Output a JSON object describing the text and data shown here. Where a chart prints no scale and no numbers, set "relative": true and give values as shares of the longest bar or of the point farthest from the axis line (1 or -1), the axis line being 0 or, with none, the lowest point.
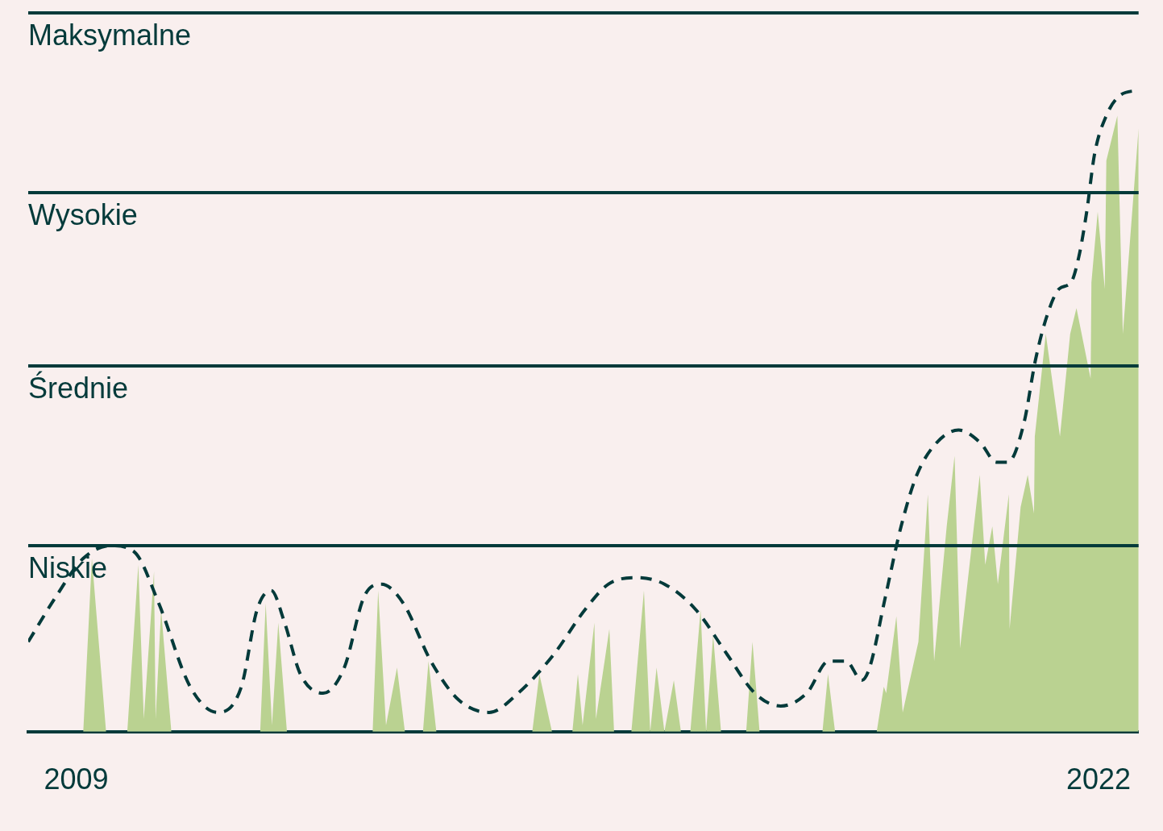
{
  "chart_data": {
    "type": "area",
    "relative": true,
    "xlim": [
      2008.39,
      2022.51
    ],
    "xticks": [
      2009,
      2022
    ],
    "tick_labels": "x",
    "grid": false,
    "legend": false,
    "marker": "none",
    "series": [
      {
        "type": "area",
        "color": "#bad291",
        "x": [
          2008.39,
          2009.09,
          2009.2,
          2009.38,
          2009.65,
          2009.79,
          2009.86,
          2009.99,
          2010.01,
          2010.08,
          2010.21,
          2011.34,
          2011.41,
          2011.49,
          2011.57,
          2011.68,
          2012.77,
          2012.84,
          2012.94,
          2013.08,
          2013.18,
          2013.41,
          2013.48,
          2013.58,
          2014.8,
          2014.89,
          2015.05,
          2015.31,
          2015.38,
          2015.44,
          2015.59,
          2015.61,
          2015.78,
          2015.84,
          2016.06,
          2016.22,
          2016.3,
          2016.38,
          2016.48,
          2016.6,
          2016.69,
          2016.81,
          2016.94,
          2017.01,
          2017.1,
          2017.2,
          2017.52,
          2017.6,
          2017.69,
          2018.49,
          2018.56,
          2018.65,
          2019.18,
          2019.27,
          2019.3,
          2019.43,
          2019.51,
          2019.71,
          2019.83,
          2019.91,
          2020.07,
          2020.17,
          2020.24,
          2020.49,
          2020.56,
          2020.65,
          2020.72,
          2020.86,
          2020.87,
          2021.01,
          2021.1,
          2021.18,
          2021.19,
          2021.33,
          2021.51,
          2021.64,
          2021.72,
          2021.9,
          2021.91,
          2021.99,
          2022.08,
          2022.1,
          2022.24,
          2022.31,
          2022.51
        ],
        "values": [
          0,
          0,
          0.27,
          0,
          0,
          0.26,
          0.02,
          0.25,
          0.02,
          0.19,
          0,
          0,
          0.2,
          0.01,
          0.17,
          0,
          0,
          0.22,
          0.01,
          0.1,
          0,
          0,
          0.11,
          0,
          0,
          0.09,
          0,
          0,
          0.09,
          0.01,
          0.17,
          0.02,
          0.16,
          0,
          0,
          0.22,
          0,
          0.1,
          0,
          0.08,
          0,
          0,
          0.19,
          0,
          0.15,
          0,
          0,
          0.14,
          0,
          0,
          0.09,
          0,
          0,
          0.07,
          0.06,
          0.18,
          0.03,
          0.14,
          0.37,
          0.11,
          0.32,
          0.43,
          0.13,
          0.4,
          0.26,
          0.32,
          0.23,
          0.37,
          0.16,
          0.35,
          0.4,
          0.34,
          0.46,
          0.62,
          0.46,
          0.62,
          0.66,
          0.55,
          0.7,
          0.81,
          0.69,
          0.89,
          0.96,
          0.62,
          0.94
        ]
      },
      {
        "type": "line",
        "color": "#033a3a",
        "line_style": "dashed",
        "x": [
          2008.39,
          2008.74,
          2009.09,
          2009.44,
          2009.74,
          2010.05,
          2010.45,
          2010.8,
          2011.1,
          2011.3,
          2011.48,
          2011.65,
          2011.85,
          2012.14,
          2012.41,
          2012.66,
          2012.88,
          2013.16,
          2013.51,
          2013.86,
          2014.25,
          2014.62,
          2015.07,
          2015.47,
          2015.77,
          2016.13,
          2016.48,
          2016.88,
          2017.28,
          2017.63,
          2017.96,
          2018.29,
          2018.57,
          2018.79,
          2018.99,
          2019.09,
          2019.29,
          2019.49,
          2019.69,
          2019.94,
          2020.22,
          2020.5,
          2020.7,
          2020.85,
          2021.05,
          2021.2,
          2021.35,
          2021.5,
          2021.65,
          2021.75,
          2021.85,
          2021.95,
          2022.1,
          2022.26,
          2022.51
        ],
        "values": [
          0.14,
          0.21,
          0.27,
          0.29,
          0.28,
          0.2,
          0.07,
          0.03,
          0.07,
          0.19,
          0.22,
          0.17,
          0.09,
          0.06,
          0.1,
          0.21,
          0.23,
          0.2,
          0.11,
          0.05,
          0.03,
          0.06,
          0.12,
          0.19,
          0.23,
          0.24,
          0.23,
          0.19,
          0.12,
          0.06,
          0.04,
          0.06,
          0.11,
          0.11,
          0.08,
          0.1,
          0.21,
          0.32,
          0.4,
          0.45,
          0.47,
          0.45,
          0.42,
          0.42,
          0.48,
          0.58,
          0.65,
          0.69,
          0.7,
          0.74,
          0.81,
          0.9,
          0.96,
          0.99,
          1.0
        ]
      }
    ],
    "ref_lines": [
      {
        "axis": "y",
        "value": 0.29,
        "label": "Niskie",
        "color": "#033a3a"
      },
      {
        "axis": "y",
        "value": 0.57,
        "label": "Średnie",
        "color": "#033a3a"
      },
      {
        "axis": "y",
        "value": 0.84,
        "label": "Wysokie",
        "color": "#033a3a"
      },
      {
        "axis": "y",
        "value": 1.12,
        "label": "Maksymalne",
        "color": "#033a3a"
      }
    ]
  }
}
